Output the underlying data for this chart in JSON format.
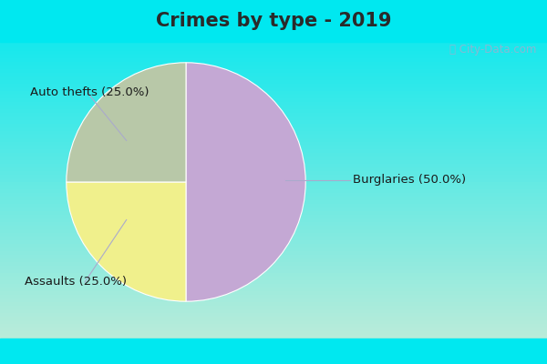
{
  "title": "Crimes by type - 2019",
  "slices": [
    {
      "label": "Burglaries (50.0%)",
      "value": 50.0,
      "color": "#c4a8d4"
    },
    {
      "label": "Auto thefts (25.0%)",
      "value": 25.0,
      "color": "#f0f08c"
    },
    {
      "label": "Assaults (25.0%)",
      "value": 25.0,
      "color": "#b8c8a8"
    }
  ],
  "bg_top_color": "#00e8f0",
  "bg_bottom_color": "#c8ecd8",
  "title_fontsize": 15,
  "label_fontsize": 9.5,
  "watermark": "City-Data.com",
  "startangle": 90,
  "title_color": "#2a2a2a",
  "label_color": "#1a1a1a",
  "top_bar_height": 0.115,
  "bottom_bar_height": 0.07
}
